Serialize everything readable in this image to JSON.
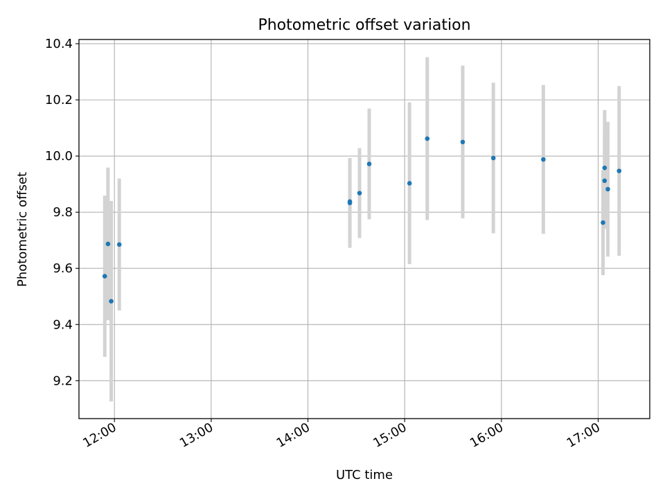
{
  "chart_data": {
    "type": "scatter",
    "title": "Photometric offset variation",
    "xlabel": "UTC time",
    "ylabel": "Photometric offset",
    "x_range": [
      "11:38",
      "17:32"
    ],
    "ylim": [
      9.065,
      10.415
    ],
    "grid": true,
    "x_ticks": [
      "12:00",
      "13:00",
      "14:00",
      "15:00",
      "16:00",
      "17:00"
    ],
    "y_ticks": [
      9.2,
      9.4,
      9.6,
      9.8,
      10.0,
      10.2,
      10.4
    ],
    "point_color": "#1f77b4",
    "errorbar_color": "#d3d3d3",
    "points": [
      {
        "x": "11:54",
        "y": 9.572,
        "yerr": 0.287
      },
      {
        "x": "11:56",
        "y": 9.687,
        "yerr": 0.272
      },
      {
        "x": "11:58",
        "y": 9.483,
        "yerr": 0.357
      },
      {
        "x": "12:03",
        "y": 9.685,
        "yerr": 0.235
      },
      {
        "x": "14:26",
        "y": 9.833,
        "yerr": 0.16
      },
      {
        "x": "14:26",
        "y": 9.838,
        "yerr": 0.153
      },
      {
        "x": "14:32",
        "y": 9.868,
        "yerr": 0.16
      },
      {
        "x": "14:38",
        "y": 9.972,
        "yerr": 0.197
      },
      {
        "x": "15:03",
        "y": 9.903,
        "yerr": 0.288
      },
      {
        "x": "15:14",
        "y": 10.062,
        "yerr": 0.29
      },
      {
        "x": "15:36",
        "y": 10.05,
        "yerr": 0.272
      },
      {
        "x": "15:55",
        "y": 9.993,
        "yerr": 0.268
      },
      {
        "x": "16:26",
        "y": 9.988,
        "yerr": 0.265
      },
      {
        "x": "17:03",
        "y": 9.763,
        "yerr": 0.187
      },
      {
        "x": "17:04",
        "y": 9.912,
        "yerr": 0.171
      },
      {
        "x": "17:04",
        "y": 9.958,
        "yerr": 0.206
      },
      {
        "x": "17:06",
        "y": 9.882,
        "yerr": 0.24
      },
      {
        "x": "17:13",
        "y": 9.947,
        "yerr": 0.302
      }
    ]
  }
}
